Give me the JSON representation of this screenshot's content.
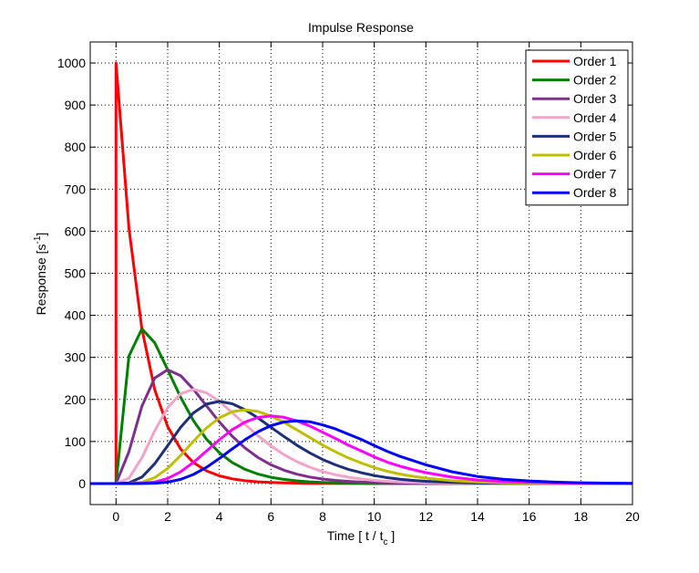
{
  "chart_data": {
    "type": "line",
    "title": "Impulse Response",
    "xlabel": {
      "main": "Time  [ t / t",
      "sub": "c",
      "end": " ]"
    },
    "ylabel": {
      "main": "Response  [s",
      "sup": "-1",
      "end": "]"
    },
    "xlim": [
      -1,
      20
    ],
    "ylim": [
      -50,
      1050
    ],
    "xticks": [
      0,
      2,
      4,
      6,
      8,
      10,
      12,
      14,
      16,
      18,
      20
    ],
    "yticks": [
      0,
      100,
      200,
      300,
      400,
      500,
      600,
      700,
      800,
      900,
      1000
    ],
    "grid": true,
    "legend_position": "top-right",
    "x": [
      -1,
      0,
      0,
      0.5,
      1,
      1.5,
      2,
      2.5,
      3,
      3.5,
      4,
      4.5,
      5,
      5.5,
      6,
      6.5,
      7,
      7.5,
      8,
      8.5,
      9,
      9.5,
      10,
      10.5,
      11,
      11.5,
      12,
      13,
      14,
      15,
      16,
      17,
      18,
      19,
      20
    ],
    "series": [
      {
        "name": "Order 1",
        "color": "#ff0000",
        "values": [
          0,
          0,
          1000,
          606.5,
          367.9,
          223.1,
          135.3,
          82.1,
          49.8,
          30.2,
          18.3,
          11.1,
          6.7,
          4.1,
          2.5,
          1.5,
          0.9,
          0.6,
          0.3,
          0.2,
          0.1,
          0.1,
          0,
          0,
          0,
          0,
          0,
          0,
          0,
          0,
          0,
          0,
          0,
          0,
          0
        ]
      },
      {
        "name": "Order 2",
        "color": "#008000",
        "values": [
          0,
          0,
          0,
          303.3,
          367.9,
          334.7,
          270.7,
          205.2,
          149.4,
          105.7,
          73.3,
          50.0,
          33.7,
          22.5,
          14.9,
          9.8,
          6.4,
          4.1,
          2.7,
          1.7,
          1.1,
          0.7,
          0.5,
          0.3,
          0.2,
          0.1,
          0.1,
          0,
          0,
          0,
          0,
          0,
          0,
          0,
          0
        ]
      },
      {
        "name": "Order 3",
        "color": "#7e2f8e",
        "values": [
          0,
          0,
          0,
          75.8,
          183.9,
          251.0,
          270.7,
          256.5,
          224.0,
          185.0,
          146.5,
          112.5,
          84.2,
          61.8,
          44.6,
          31.8,
          22.3,
          15.6,
          10.7,
          7.4,
          5.0,
          3.4,
          2.3,
          1.5,
          1.0,
          0.7,
          0.4,
          0.2,
          0.1,
          0,
          0,
          0,
          0,
          0,
          0
        ]
      },
      {
        "name": "Order 4",
        "color": "#f4a3c8",
        "values": [
          0,
          0,
          0,
          12.6,
          61.3,
          125.5,
          180.4,
          213.8,
          224.0,
          215.8,
          195.3,
          168.7,
          140.4,
          113.3,
          89.2,
          68.9,
          52.1,
          39.0,
          28.6,
          20.9,
          15.0,
          10.8,
          7.6,
          5.3,
          3.7,
          2.6,
          1.8,
          0.8,
          0.4,
          0.2,
          0.1,
          0,
          0,
          0,
          0
        ]
      },
      {
        "name": "Order 5",
        "color": "#1c2f78",
        "values": [
          0,
          0,
          0,
          1.6,
          15.3,
          47.1,
          90.2,
          133.6,
          168.0,
          188.8,
          195.3,
          189.8,
          175.5,
          155.8,
          133.8,
          112.0,
          91.2,
          73.1,
          57.2,
          44.4,
          33.8,
          25.7,
          19.0,
          13.9,
          10.2,
          7.5,
          5.4,
          2.7,
          1.3,
          0.6,
          0.3,
          0.1,
          0.1,
          0,
          0
        ]
      },
      {
        "name": "Order 6",
        "color": "#bfbf00",
        "values": [
          0,
          0,
          0,
          0.2,
          3.1,
          14.1,
          36.1,
          66.8,
          100.8,
          132.2,
          156.2,
          170.8,
          175.5,
          171.4,
          160.6,
          145.6,
          127.7,
          109.7,
          91.5,
          75.5,
          60.8,
          48.8,
          38.0,
          29.2,
          22.4,
          17.3,
          13.0,
          7.0,
          3.6,
          1.9,
          1.0,
          0.5,
          0.2,
          0.1,
          0.1
        ]
      },
      {
        "name": "Order 7",
        "color": "#ff00ff",
        "values": [
          0,
          0,
          0,
          0,
          0.5,
          3.5,
          12.0,
          27.8,
          50.4,
          77.1,
          104.1,
          128.1,
          146.3,
          157.1,
          160.6,
          157.7,
          149.0,
          137.1,
          122.0,
          107.0,
          91.2,
          77.3,
          63.3,
          51.1,
          41.1,
          33.2,
          26.0,
          15.2,
          8.4,
          4.8,
          2.7,
          1.4,
          0.7,
          0.4,
          0.2
        ]
      },
      {
        "name": "Order 8",
        "color": "#0000ff",
        "values": [
          0,
          0,
          0,
          0,
          0.1,
          0.8,
          3.4,
          9.9,
          21.6,
          38.6,
          59.5,
          82.4,
          104.5,
          123.4,
          137.7,
          146.4,
          149.0,
          146.9,
          139.4,
          129.9,
          117.3,
          104.9,
          90.4,
          76.7,
          64.6,
          54.5,
          44.6,
          28.2,
          16.8,
          10.2,
          6.2,
          3.3,
          1.9,
          1.0,
          0.5
        ]
      }
    ]
  }
}
